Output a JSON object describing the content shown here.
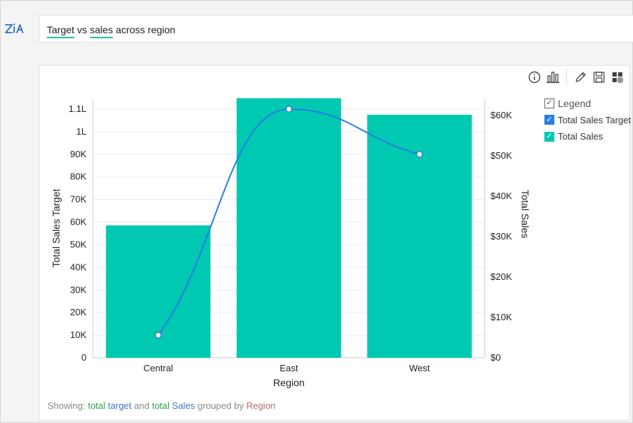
{
  "query": {
    "part1": "Target",
    "part2": " vs ",
    "part3": "sales",
    "part4": " across region"
  },
  "toolbar": {
    "icons": [
      "info-icon",
      "chart-type-icon",
      "edit-icon",
      "save-icon",
      "dashboard-add-icon"
    ]
  },
  "legend": {
    "title": "Legend",
    "items": [
      {
        "label": "Total Sales Target",
        "color": "#2a7de1"
      },
      {
        "label": "Total Sales",
        "color": "#00c9b1"
      }
    ]
  },
  "summary": {
    "prefix": "Showing: ",
    "w1": "total",
    "w2": " target",
    "w3": " and ",
    "w4": "total",
    "w5": " Sales",
    "w6": " grouped by ",
    "w7": "Region"
  },
  "colors": {
    "bar": "#00c9b1",
    "line": "#2a7de1",
    "accent_underline": "#1fc7a6"
  },
  "chart_data": {
    "type": "bar",
    "categories": [
      "Central",
      "East",
      "West"
    ],
    "xlabel": "Region",
    "series": [
      {
        "name": "Total Sales",
        "kind": "bar",
        "axis": "right",
        "values": [
          32800,
          64300,
          60200
        ]
      },
      {
        "name": "Total Sales Target",
        "kind": "line",
        "axis": "left",
        "values": [
          10000,
          110000,
          90000
        ]
      }
    ],
    "y_left": {
      "label": "Total Sales Target",
      "ylim": [
        0,
        110000
      ],
      "ticks": [
        0,
        10000,
        20000,
        30000,
        40000,
        50000,
        60000,
        70000,
        80000,
        90000,
        100000,
        110000
      ],
      "tick_labels": [
        "0",
        "10K",
        "20K",
        "30K",
        "40K",
        "50K",
        "60K",
        "70K",
        "80K",
        "90K",
        "1L",
        "1.1L"
      ]
    },
    "y_right": {
      "label": "Total Sales",
      "ylim": [
        0,
        63000
      ],
      "ticks": [
        0,
        10000,
        20000,
        30000,
        40000,
        50000,
        60000
      ],
      "tick_labels": [
        "$0",
        "$10K",
        "$20K",
        "$30K",
        "$40K",
        "$50K",
        "$60K"
      ]
    },
    "grid": true,
    "legend_position": "right"
  }
}
